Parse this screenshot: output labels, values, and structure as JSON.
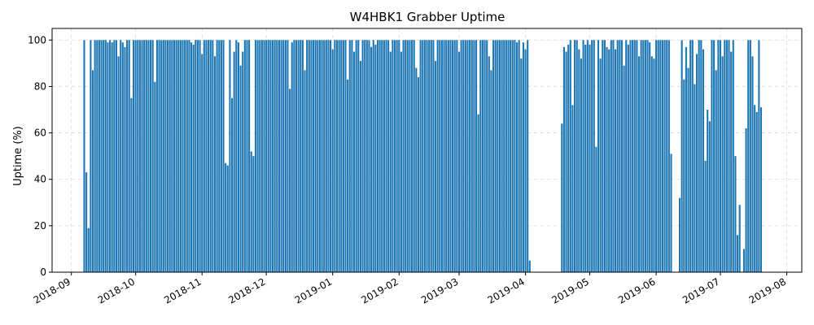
{
  "chart_data": {
    "type": "bar",
    "title": "W4HBK1 Grabber Uptime",
    "xlabel": "",
    "ylabel": "Uptime (%)",
    "bar_color": "#1f77b4",
    "grid": true,
    "legend": "none",
    "xlim": [
      "2018-08-23",
      "2019-08-08"
    ],
    "ylim": [
      0,
      105
    ],
    "yticks": [
      0,
      20,
      40,
      60,
      80,
      100
    ],
    "xticks": [
      "2018-09",
      "2018-10",
      "2018-11",
      "2018-12",
      "2019-01",
      "2019-02",
      "2019-03",
      "2019-04",
      "2019-05",
      "2019-06",
      "2019-07",
      "2019-08"
    ],
    "series": [
      {
        "start_date": "2018-09-07",
        "values": [
          100,
          43,
          19,
          100,
          87,
          100,
          100,
          100,
          100,
          100,
          100,
          99,
          100,
          99,
          100,
          100,
          93,
          100,
          99,
          97,
          100,
          100,
          75,
          100,
          100,
          100,
          100,
          100,
          100,
          100,
          100,
          100,
          100,
          82,
          100,
          100,
          100,
          100,
          100,
          100,
          100,
          100,
          100,
          100,
          100,
          100,
          100,
          100,
          100,
          100,
          99,
          98,
          100,
          100,
          100,
          94,
          100,
          100,
          100,
          100,
          100,
          93,
          100,
          100,
          100,
          100,
          47,
          46,
          100,
          75,
          95,
          100,
          99,
          89,
          95,
          100,
          100,
          100,
          52,
          50,
          100,
          100,
          100,
          100,
          100,
          100,
          100,
          100,
          100,
          100,
          100,
          100,
          100,
          100,
          100,
          100,
          79,
          99,
          100,
          100,
          100,
          100,
          100,
          87,
          100,
          100,
          100,
          100,
          100,
          100,
          100,
          100,
          100,
          100,
          100,
          100,
          96,
          100,
          100,
          100,
          100,
          100,
          100,
          83,
          100,
          100,
          95,
          100,
          100,
          91,
          100,
          100,
          100,
          100,
          97,
          100,
          98,
          100,
          100,
          100,
          100,
          100,
          100,
          95,
          100,
          100,
          100,
          100,
          95,
          100,
          100,
          100,
          100,
          100,
          100,
          88,
          84,
          100,
          100,
          100,
          100,
          100,
          100,
          100,
          91,
          100,
          100,
          100,
          100,
          100,
          100,
          100,
          100,
          100,
          100,
          95,
          100,
          100,
          100,
          100,
          100,
          100,
          100,
          100,
          68,
          100,
          100,
          100,
          100,
          93,
          87,
          100,
          100,
          100,
          100,
          100,
          100,
          100,
          100,
          100,
          100,
          100,
          99,
          100,
          92,
          99,
          96,
          100,
          5,
          null,
          null,
          null,
          null,
          null,
          null,
          null,
          null,
          null,
          null,
          null,
          null,
          null,
          null,
          64,
          97,
          95,
          98,
          100,
          72,
          100,
          100,
          96,
          92,
          100,
          98,
          100,
          98,
          100,
          100,
          54,
          100,
          92,
          100,
          100,
          97,
          96,
          100,
          100,
          96,
          100,
          100,
          100,
          89,
          100,
          98,
          100,
          100,
          100,
          100,
          93,
          100,
          100,
          100,
          100,
          99,
          93,
          92,
          100,
          100,
          100,
          100,
          100,
          100,
          100,
          51,
          null,
          null,
          null,
          32,
          100,
          83,
          97,
          88,
          100,
          100,
          81,
          94,
          100,
          100,
          96,
          48,
          70,
          65,
          100,
          100,
          87,
          100,
          100,
          93,
          100,
          100,
          100,
          95,
          100,
          50,
          16,
          29,
          null,
          10,
          62,
          100,
          100,
          93,
          72,
          69,
          100,
          71
        ]
      }
    ]
  }
}
